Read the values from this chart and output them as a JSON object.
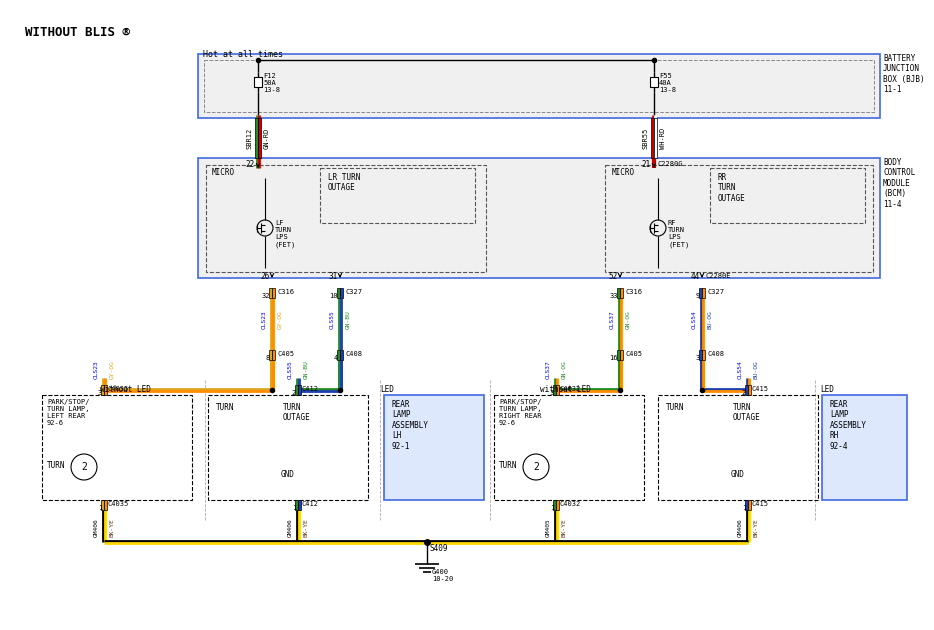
{
  "title": "WITHOUT BLIS ®",
  "bg_color": "#ffffff",
  "GRN": "#228B22",
  "GLD": "#DAA520",
  "BLU": "#1E40AF",
  "ORG": "#FF8C00",
  "BLK": "#000000",
  "RED": "#CC0000",
  "YEL": "#FFD700",
  "WHT": "#FFFFFF",
  "LGRAY": "#f0f0f0",
  "BJB_label": "BATTERY\nJUNCTION\nBOX (BJB)\n11-1",
  "BCM_label": "BODY\nCONTROL\nMODULE\n(BCM)\n11-4",
  "hot_label": "Hot at all times"
}
